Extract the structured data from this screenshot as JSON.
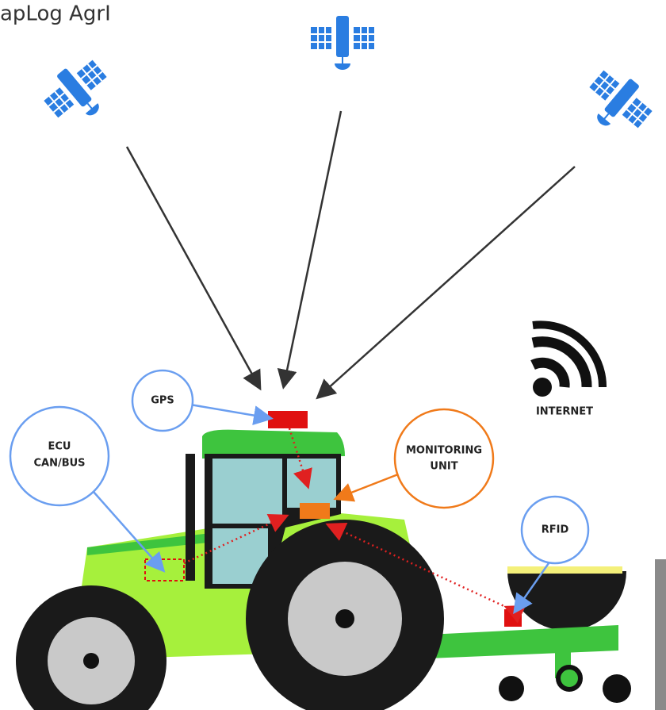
{
  "title": "apLog AgrI",
  "labels": {
    "gps": "GPS",
    "ecu": [
      "ECU",
      "CAN/BUS"
    ],
    "monitoring": [
      "MONITORING",
      "UNIT"
    ],
    "internet": "INTERNET",
    "rfid": "RFID"
  }
}
